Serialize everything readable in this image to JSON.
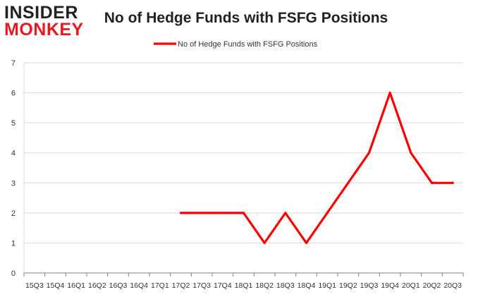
{
  "logo": {
    "line1": "INSIDER",
    "line2": "MONKEY"
  },
  "colors": {
    "series": "#ff0000",
    "grid": "#d9d9d9",
    "axis": "#7f7f7f",
    "text": "#222222"
  },
  "chart_data": {
    "type": "line",
    "title": "No of Hedge Funds with FSFG Positions",
    "xlabel": "",
    "ylabel": "",
    "categories": [
      "15Q3",
      "15Q4",
      "16Q1",
      "16Q2",
      "16Q3",
      "16Q4",
      "17Q1",
      "17Q2",
      "17Q3",
      "17Q4",
      "18Q1",
      "18Q2",
      "18Q3",
      "18Q4",
      "19Q1",
      "19Q2",
      "19Q3",
      "19Q4",
      "20Q1",
      "20Q2",
      "20Q3"
    ],
    "series": [
      {
        "name": "No of Hedge Funds with FSFG Positions",
        "values": [
          null,
          null,
          null,
          null,
          null,
          null,
          null,
          2,
          2,
          2,
          2,
          1,
          2,
          1,
          2,
          3,
          4,
          6,
          4,
          3,
          3
        ]
      }
    ],
    "ylim": [
      0,
      7
    ],
    "yticks": [
      0,
      1,
      2,
      3,
      4,
      5,
      6,
      7
    ],
    "grid": true,
    "legend": "top-center"
  }
}
